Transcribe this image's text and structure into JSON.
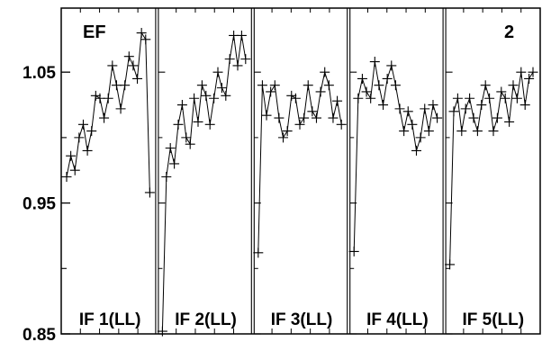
{
  "chart_data": {
    "type": "line",
    "title": "",
    "xlabel": "",
    "ylabel": "",
    "ylim": [
      0.85,
      1.09
    ],
    "yticks": [
      {
        "value": 1.05,
        "label": "1.05"
      },
      {
        "value": 0.95,
        "label": "0.95"
      },
      {
        "value": 0.85,
        "label": "0.85"
      }
    ],
    "y_minor_ticks": [
      1.0,
      0.9
    ],
    "grid": false,
    "marker": "plus",
    "line_color": "#000000",
    "corner_labels": {
      "left": "EF",
      "right": "2"
    },
    "panels": [
      {
        "label": "IF 1(LL)",
        "y": [
          0.97,
          0.986,
          0.975,
          1.0,
          1.01,
          0.99,
          1.005,
          1.032,
          1.03,
          1.015,
          1.03,
          1.055,
          1.04,
          1.022,
          1.04,
          1.062,
          1.055,
          1.045,
          1.08,
          1.075,
          0.958
        ]
      },
      {
        "label": "IF 2(LL)",
        "y": [
          0.852,
          0.97,
          0.992,
          0.98,
          1.01,
          1.025,
          1.0,
          0.995,
          1.03,
          1.012,
          1.04,
          1.032,
          1.01,
          1.03,
          1.05,
          1.038,
          1.032,
          1.06,
          1.078,
          1.055,
          1.078,
          1.06
        ]
      },
      {
        "label": "IF 3(LL)",
        "y": [
          0.912,
          1.04,
          1.017,
          1.035,
          1.04,
          1.015,
          1.0,
          1.005,
          1.032,
          1.03,
          1.01,
          1.015,
          1.04,
          1.02,
          1.015,
          1.035,
          1.05,
          1.04,
          1.015,
          1.028,
          1.01
        ]
      },
      {
        "label": "IF 4(LL)",
        "y": [
          0.913,
          1.03,
          1.045,
          1.035,
          1.03,
          1.058,
          1.04,
          1.025,
          1.045,
          1.055,
          1.04,
          1.022,
          1.005,
          1.02,
          1.01,
          0.99,
          1.0,
          1.022,
          1.005,
          1.025,
          1.015
        ]
      },
      {
        "label": "IF 5(LL)",
        "y": [
          0.903,
          1.02,
          1.03,
          1.005,
          1.022,
          1.03,
          1.015,
          1.005,
          1.025,
          1.04,
          1.03,
          1.005,
          1.015,
          1.035,
          1.03,
          1.012,
          1.04,
          1.03,
          1.05,
          1.025,
          1.045,
          1.05
        ]
      }
    ]
  }
}
